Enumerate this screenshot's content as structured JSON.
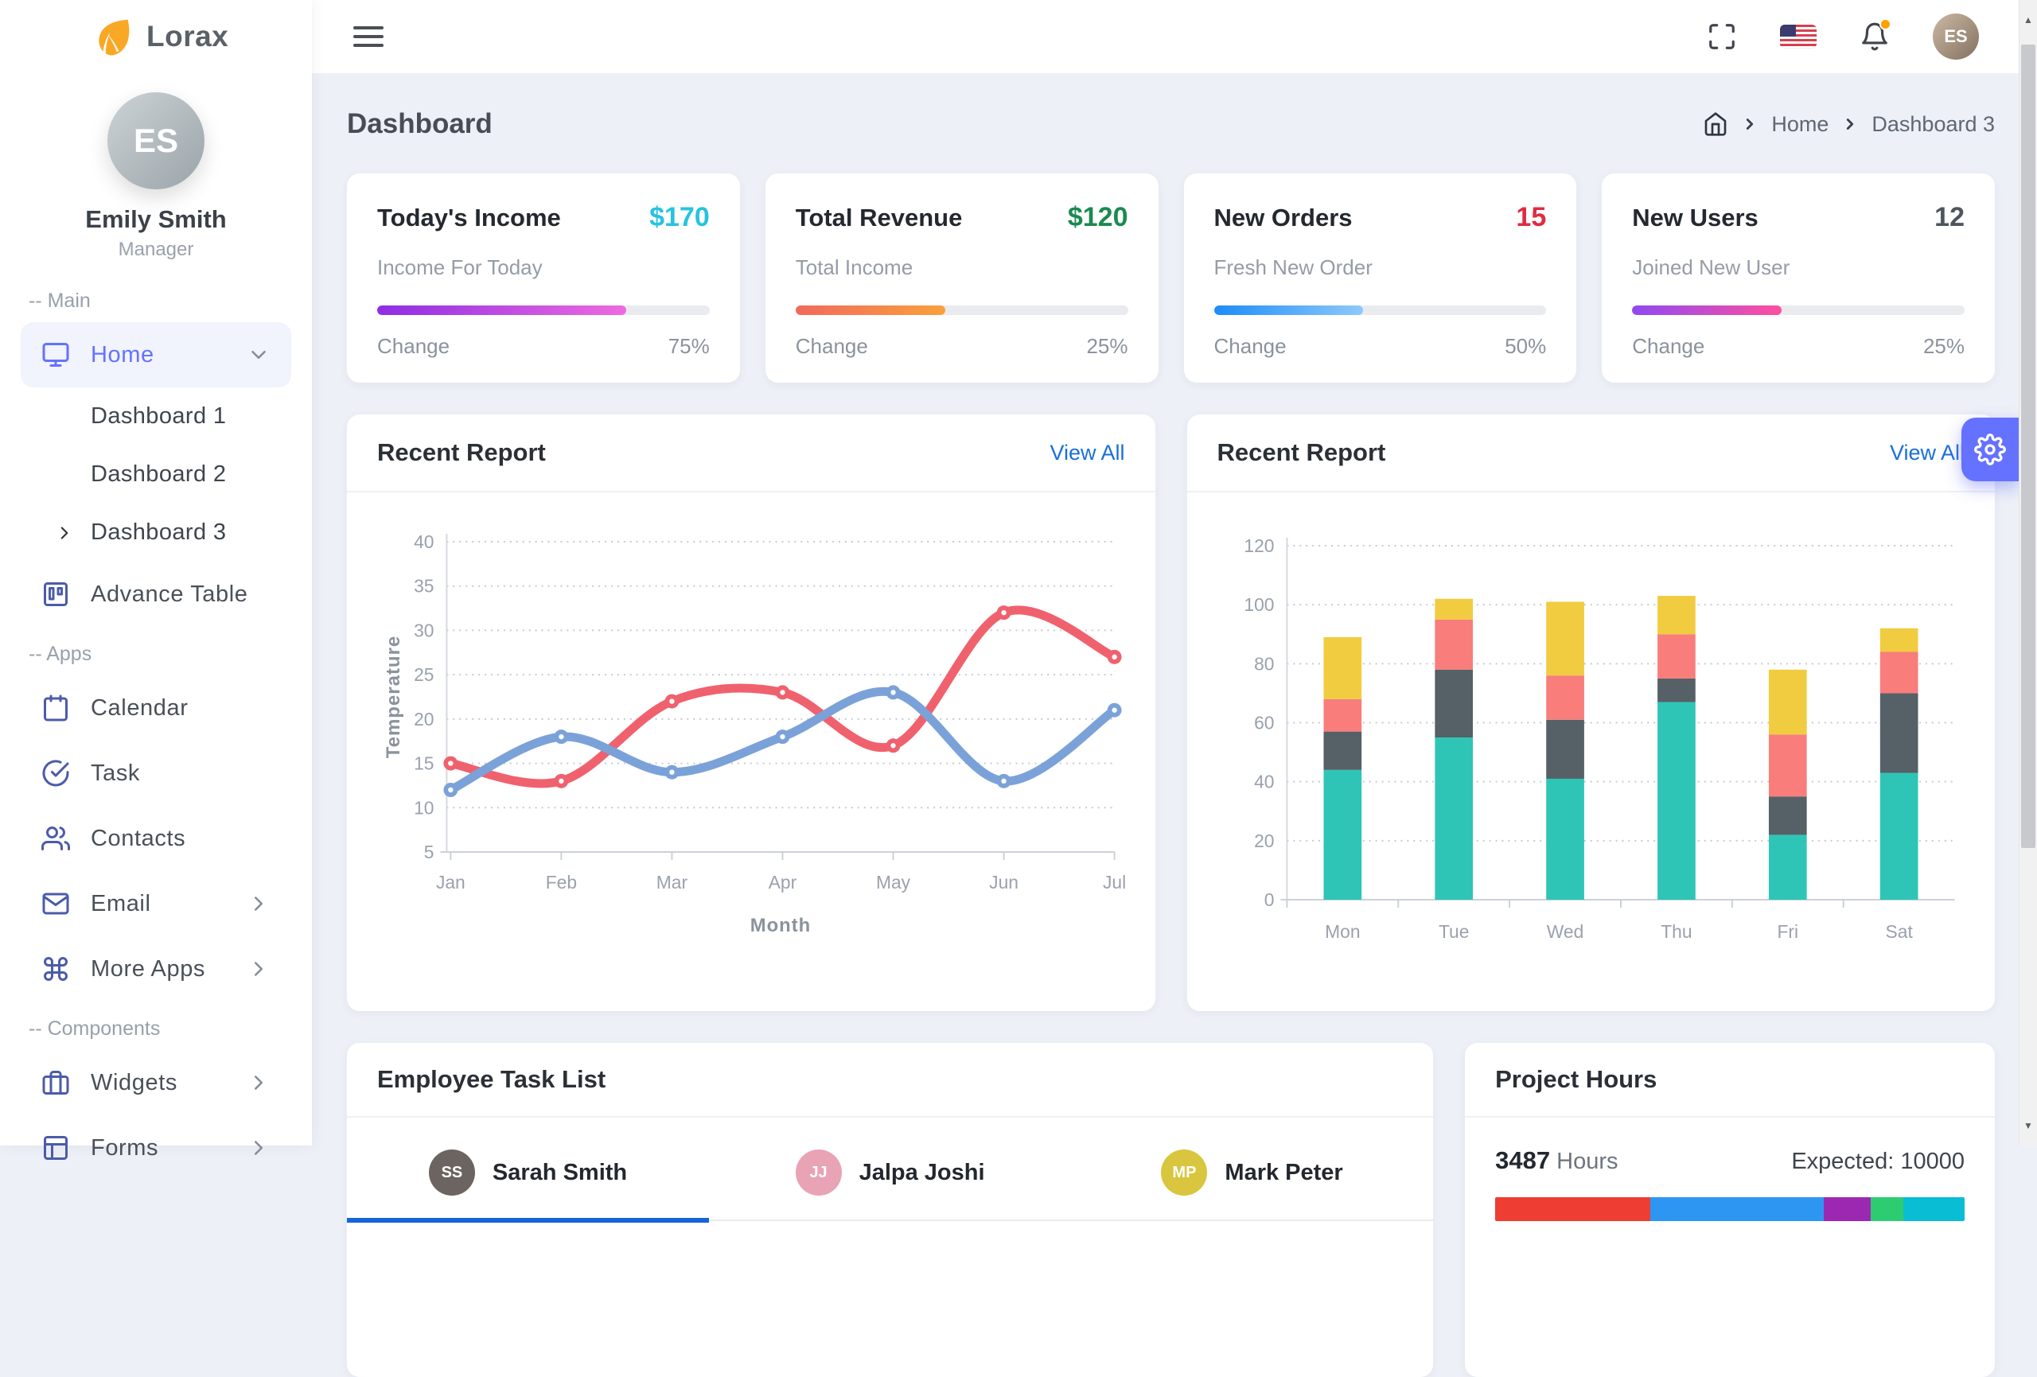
{
  "theme": {
    "accent": "#6571ff",
    "link_blue": "#1a6fd9",
    "tab_underline": "#1565d8",
    "background": "#edf0f6"
  },
  "header": {
    "page_title": "Dashboard",
    "breadcrumb": [
      "Home",
      "Dashboard 3"
    ],
    "topbar_icons": [
      "menu-icon",
      "fullscreen-icon",
      "us-flag-icon",
      "bell-icon",
      "profile-avatar"
    ]
  },
  "sidebar": {
    "logo": "Lorax",
    "logo_icon": "leaf-icon",
    "user": {
      "name": "Emily Smith",
      "role": "Manager",
      "initials": "ES"
    },
    "sections": [
      {
        "label": "-- Main",
        "items": [
          {
            "label": "Home",
            "icon": "monitor-icon",
            "active": true,
            "trailing": "chevron-down-icon",
            "children": [
              {
                "label": "Dashboard 1",
                "active": false
              },
              {
                "label": "Dashboard 2",
                "active": false
              },
              {
                "label": "Dashboard 3",
                "active": true
              }
            ]
          },
          {
            "label": "Advance Table",
            "icon": "trello-icon"
          }
        ]
      },
      {
        "label": "-- Apps",
        "items": [
          {
            "label": "Calendar",
            "icon": "calendar-icon"
          },
          {
            "label": "Task",
            "icon": "check-circle-icon"
          },
          {
            "label": "Contacts",
            "icon": "users-icon"
          },
          {
            "label": "Email",
            "icon": "mail-icon",
            "trailing": "chevron-right-icon"
          },
          {
            "label": "More Apps",
            "icon": "command-icon",
            "trailing": "chevron-right-icon"
          }
        ]
      },
      {
        "label": "-- Components",
        "items": [
          {
            "label": "Widgets",
            "icon": "briefcase-icon",
            "trailing": "chevron-right-icon"
          },
          {
            "label": "Forms",
            "icon": "layout-icon",
            "trailing": "chevron-right-icon"
          }
        ]
      }
    ]
  },
  "stat_cards": [
    {
      "title": "Today's Income",
      "value": "$170",
      "value_color": "#26c3e0",
      "subtitle": "Income For Today",
      "change_label": "Change",
      "change_value": "75%",
      "bar_fill_pct": 75,
      "bar_from": "#8e2de2",
      "bar_to": "#ee6be0"
    },
    {
      "title": "Total Revenue",
      "value": "$120",
      "value_color": "#1b8a50",
      "subtitle": "Total Income",
      "change_label": "Change",
      "change_value": "25%",
      "bar_fill_pct": 45,
      "bar_from": "#f2695c",
      "bar_to": "#f9a13c"
    },
    {
      "title": "New Orders",
      "value": "15",
      "value_color": "#e02b43",
      "subtitle": "Fresh New Order",
      "change_label": "Change",
      "change_value": "50%",
      "bar_fill_pct": 45,
      "bar_from": "#1d8cf8",
      "bar_to": "#8ec9fa"
    },
    {
      "title": "New Users",
      "value": "12",
      "value_color": "#4f555d",
      "subtitle": "Joined New User",
      "change_label": "Change",
      "change_value": "25%",
      "bar_fill_pct": 45,
      "bar_from": "#8f49f2",
      "bar_to": "#ff4f9e"
    }
  ],
  "chart_data": [
    {
      "type": "line",
      "card_title": "Recent Report",
      "link": "View All",
      "x": [
        "Jan",
        "Feb",
        "Mar",
        "Apr",
        "May",
        "Jun",
        "Jul"
      ],
      "xlabel": "Month",
      "ylabel": "Temperature",
      "ylim": [
        5,
        40
      ],
      "yticks": [
        5,
        10,
        15,
        20,
        25,
        30,
        35,
        40
      ],
      "grid": "dotted-horizontal",
      "legend": "none",
      "series": [
        {
          "name": "red-series",
          "color": "#f0616e",
          "values": [
            15,
            13,
            22,
            23,
            17,
            32,
            27
          ]
        },
        {
          "name": "blue-series",
          "color": "#7ba2d8",
          "values": [
            12,
            18,
            14,
            18,
            23,
            13,
            21
          ]
        }
      ]
    },
    {
      "type": "bar-stacked",
      "card_title": "Recent Report",
      "link": "View All",
      "categories": [
        "Mon",
        "Tue",
        "Wed",
        "Thu",
        "Fri",
        "Sat"
      ],
      "ylim": [
        0,
        120
      ],
      "yticks": [
        0,
        20,
        40,
        60,
        80,
        100,
        120
      ],
      "grid": "dotted-horizontal",
      "legend": "none",
      "series": [
        {
          "name": "teal-series",
          "color": "#2ec5b6",
          "values": [
            44,
            55,
            41,
            67,
            22,
            43
          ]
        },
        {
          "name": "gray-series",
          "color": "#566067",
          "values": [
            13,
            23,
            20,
            8,
            13,
            27
          ]
        },
        {
          "name": "salmon-series",
          "color": "#f87d7b",
          "values": [
            11,
            17,
            15,
            15,
            21,
            14
          ]
        },
        {
          "name": "yellow-series",
          "color": "#f1cc40",
          "values": [
            21,
            7,
            25,
            13,
            22,
            8
          ]
        }
      ]
    }
  ],
  "task_list": {
    "title": "Employee Task List",
    "tabs": [
      {
        "name": "Sarah Smith",
        "initials": "SS",
        "avatar_bg": "#6b6460",
        "active": true
      },
      {
        "name": "Jalpa Joshi",
        "initials": "JJ",
        "avatar_bg": "#e8a3b4",
        "active": false
      },
      {
        "name": "Mark Peter",
        "initials": "MP",
        "avatar_bg": "#d9c53e",
        "active": false
      }
    ]
  },
  "project_hours": {
    "title": "Project Hours",
    "hours": "3487",
    "hours_label": "Hours",
    "expected": "Expected: 10000",
    "segments": [
      {
        "name": "red-segment",
        "color": "#ee3d32",
        "pct": 33
      },
      {
        "name": "blue-segment",
        "color": "#2d96f3",
        "pct": 37
      },
      {
        "name": "purple-segment",
        "color": "#9c28b1",
        "pct": 10
      },
      {
        "name": "green-segment",
        "color": "#2ecc71",
        "pct": 7
      },
      {
        "name": "teal-segment",
        "color": "#08bdd4",
        "pct": 13
      }
    ]
  }
}
